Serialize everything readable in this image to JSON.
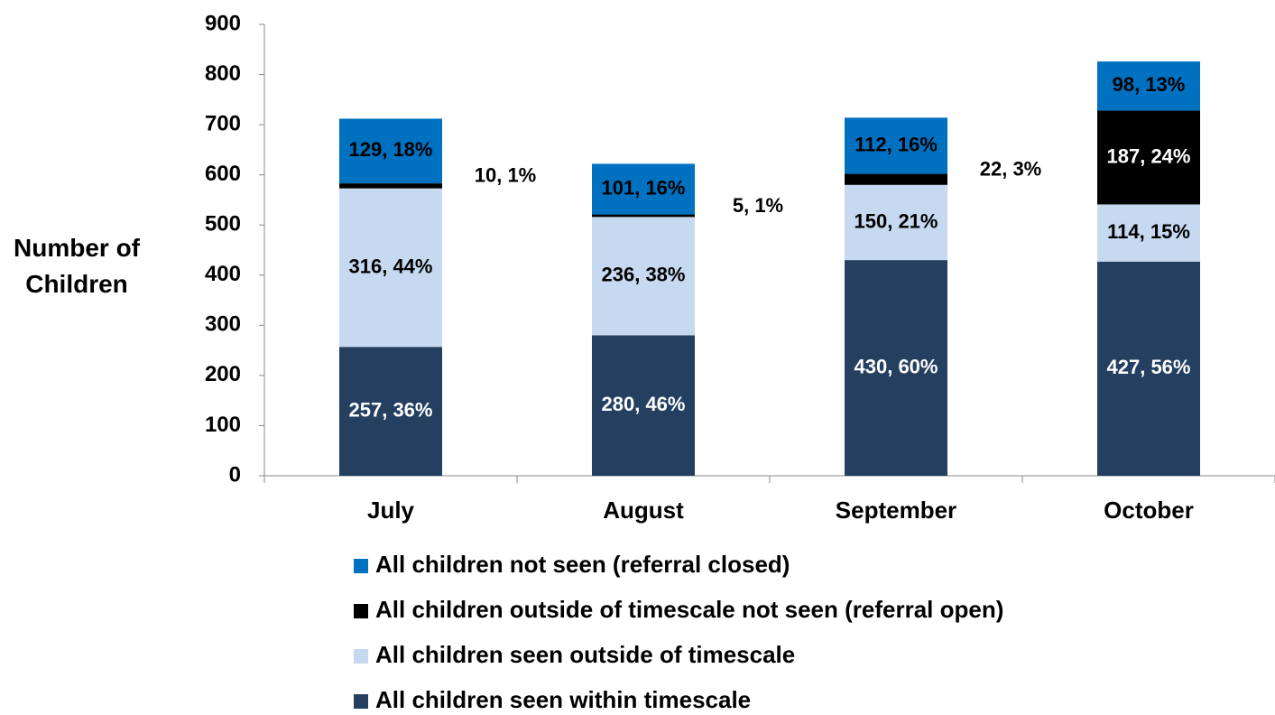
{
  "chart_data": {
    "type": "stacked_bar",
    "y_label": "Number of Children",
    "categories": [
      "July",
      "August",
      "September",
      "October"
    ],
    "ylim": [
      0,
      900
    ],
    "yticks": [
      0,
      100,
      200,
      300,
      400,
      500,
      600,
      700,
      800,
      900
    ],
    "legend_position": "bottom",
    "series": [
      {
        "name": "All children seen within timescale",
        "color": "#243f60",
        "label_color": "#ffffff",
        "values": [
          257,
          280,
          430,
          427
        ],
        "value_labels": [
          "257, 36%",
          "280, 46%",
          "430, 60%",
          "427, 56%"
        ]
      },
      {
        "name": "All children seen outside of timescale",
        "color": "#c6d9f1",
        "label_color": "#000000",
        "values": [
          316,
          236,
          150,
          114
        ],
        "value_labels": [
          "316, 44%",
          "236, 38%",
          "150, 21%",
          "114, 15%"
        ]
      },
      {
        "name": "All children outside of timescale not seen (referral open)",
        "color": "#000000",
        "label_color": "#ffffff",
        "values": [
          10,
          5,
          22,
          187
        ],
        "value_labels": [
          "10, 1%",
          "5, 1%",
          "22, 3%",
          "187, 24%"
        ]
      },
      {
        "name": "All children not seen (referral closed)",
        "color": "#0070c0",
        "label_color": "#000000",
        "values": [
          129,
          101,
          112,
          98
        ],
        "value_labels": [
          "129, 18%",
          "101, 16%",
          "112, 16%",
          "98,  13%"
        ]
      }
    ]
  }
}
